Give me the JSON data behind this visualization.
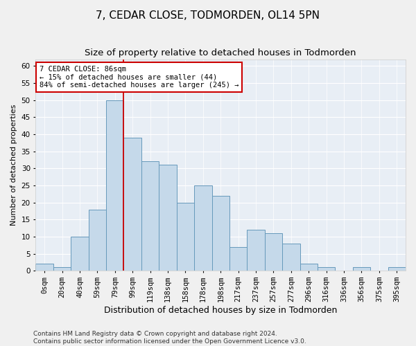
{
  "title": "7, CEDAR CLOSE, TODMORDEN, OL14 5PN",
  "subtitle": "Size of property relative to detached houses in Todmorden",
  "xlabel": "Distribution of detached houses by size in Todmorden",
  "ylabel": "Number of detached properties",
  "bar_color": "#c5d9ea",
  "bar_edge_color": "#6699bb",
  "background_color": "#e8eef5",
  "grid_color": "#ffffff",
  "categories": [
    "0sqm",
    "20sqm",
    "40sqm",
    "59sqm",
    "79sqm",
    "99sqm",
    "119sqm",
    "138sqm",
    "158sqm",
    "178sqm",
    "198sqm",
    "217sqm",
    "237sqm",
    "257sqm",
    "277sqm",
    "296sqm",
    "316sqm",
    "336sqm",
    "356sqm",
    "375sqm",
    "395sqm"
  ],
  "values": [
    2,
    1,
    10,
    18,
    50,
    39,
    32,
    31,
    20,
    25,
    22,
    7,
    12,
    11,
    8,
    2,
    1,
    0,
    1,
    0,
    1
  ],
  "ylim": [
    0,
    62
  ],
  "yticks": [
    0,
    5,
    10,
    15,
    20,
    25,
    30,
    35,
    40,
    45,
    50,
    55,
    60
  ],
  "property_label": "7 CEDAR CLOSE: 86sqm",
  "pct_smaller": "15% of detached houses are smaller (44)",
  "pct_larger": "84% of semi-detached houses are larger (245)",
  "vline_bin_index": 4.5,
  "annotation_box_color": "#ffffff",
  "annotation_box_edge_color": "#cc0000",
  "vline_color": "#cc0000",
  "footer_text": "Contains HM Land Registry data © Crown copyright and database right 2024.\nContains public sector information licensed under the Open Government Licence v3.0.",
  "title_fontsize": 11,
  "subtitle_fontsize": 9.5,
  "xlabel_fontsize": 9,
  "ylabel_fontsize": 8,
  "tick_fontsize": 7.5,
  "footer_fontsize": 6.5,
  "annotation_fontsize": 7.5
}
